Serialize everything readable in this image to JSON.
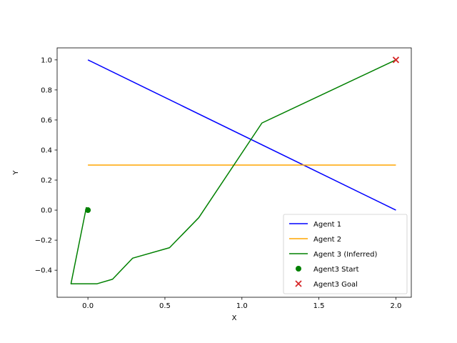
{
  "chart_data": {
    "type": "line",
    "title": "",
    "xlabel": "X",
    "ylabel": "Y",
    "xlim": [
      -0.2,
      2.1
    ],
    "ylim": [
      -0.58,
      1.08
    ],
    "xticks": [
      0.0,
      0.5,
      1.0,
      1.5,
      2.0
    ],
    "xtick_labels": [
      "0.0",
      "0.5",
      "1.0",
      "1.5",
      "2.0"
    ],
    "yticks": [
      -0.4,
      -0.2,
      0.0,
      0.2,
      0.4,
      0.6,
      0.8,
      1.0
    ],
    "ytick_labels": [
      "−0.4",
      "−0.2",
      "0.0",
      "0.2",
      "0.4",
      "0.6",
      "0.8",
      "1.0"
    ],
    "grid": false,
    "legend_position": "lower-right",
    "series": [
      {
        "name": "Agent 1",
        "kind": "line",
        "color": "#0000ff",
        "x": [
          0.0,
          2.0
        ],
        "y": [
          1.0,
          0.0
        ]
      },
      {
        "name": "Agent 2",
        "kind": "line",
        "color": "#ffa500",
        "x": [
          0.0,
          2.0
        ],
        "y": [
          0.3,
          0.3
        ]
      },
      {
        "name": "Agent 3 (Inferred)",
        "kind": "line",
        "color": "#008000",
        "x": [
          -0.01,
          -0.11,
          0.06,
          0.16,
          0.29,
          0.53,
          0.72,
          1.13,
          2.0
        ],
        "y": [
          0.02,
          -0.49,
          -0.49,
          -0.46,
          -0.32,
          -0.25,
          -0.05,
          0.58,
          1.0
        ]
      },
      {
        "name": "Agent3 Start",
        "kind": "scatter",
        "marker": "circle",
        "color": "#008000",
        "x": [
          0.0
        ],
        "y": [
          0.0
        ]
      },
      {
        "name": "Agent3 Goal",
        "kind": "scatter",
        "marker": "x",
        "color": "#d62728",
        "x": [
          2.0
        ],
        "y": [
          1.0
        ]
      }
    ]
  }
}
